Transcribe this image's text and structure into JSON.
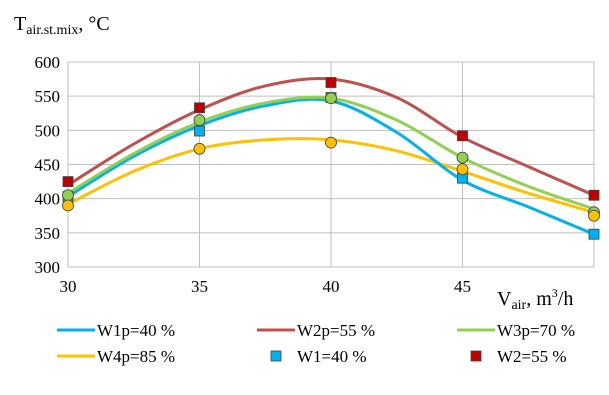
{
  "chart_data": {
    "type": "line",
    "ylabel_main": "T",
    "ylabel_sub": "air.st.mix",
    "ylabel_unit": ", °C",
    "xlabel_main": "V",
    "xlabel_sub": "air",
    "xlabel_unit": ", m",
    "xlabel_sup": "3",
    "xlabel_tail": "/h",
    "x": [
      30,
      35,
      40,
      45,
      50
    ],
    "x_tick_labels": [
      "30",
      "35",
      "40",
      "45"
    ],
    "ylim": [
      300,
      600
    ],
    "y_ticks": [
      300,
      350,
      400,
      450,
      500,
      550,
      600
    ],
    "grid": true,
    "legend_position": "bottom",
    "lines": [
      {
        "name": "W1p=40 %",
        "color": "#00b0f0",
        "points": [
          [
            30,
            403
          ],
          [
            32.5,
            462
          ],
          [
            35,
            507
          ],
          [
            37.5,
            536
          ],
          [
            40,
            543
          ],
          [
            42.5,
            497
          ],
          [
            45,
            427
          ],
          [
            47.5,
            388
          ],
          [
            50,
            348
          ]
        ]
      },
      {
        "name": "W2p=55 %",
        "color": "#c0504d",
        "points": [
          [
            30,
            420
          ],
          [
            32.5,
            480
          ],
          [
            35,
            530
          ],
          [
            37.5,
            565
          ],
          [
            40,
            575
          ],
          [
            42.5,
            548
          ],
          [
            45,
            490
          ],
          [
            47.5,
            447
          ],
          [
            50,
            405
          ]
        ]
      },
      {
        "name": "W3p=70 %",
        "color": "#92d050",
        "points": [
          [
            30,
            408
          ],
          [
            32.5,
            466
          ],
          [
            35,
            512
          ],
          [
            37.5,
            540
          ],
          [
            40,
            547
          ],
          [
            42.5,
            515
          ],
          [
            45,
            460
          ],
          [
            47.5,
            418
          ],
          [
            50,
            385
          ]
        ]
      },
      {
        "name": "W4p=85 %",
        "color": "#ffc000",
        "points": [
          [
            30,
            392
          ],
          [
            32.5,
            440
          ],
          [
            35,
            473
          ],
          [
            37.5,
            486
          ],
          [
            40,
            486
          ],
          [
            42.5,
            470
          ],
          [
            45,
            440
          ],
          [
            47.5,
            408
          ],
          [
            50,
            380
          ]
        ]
      }
    ],
    "markers": [
      {
        "name": "W1=40 %",
        "shape": "square",
        "fill": "#00b0f0",
        "x": [
          30,
          35,
          40,
          45,
          50
        ],
        "y": [
          403,
          499,
          548,
          430,
          348
        ]
      },
      {
        "name": "W2=55 %",
        "shape": "square",
        "fill": "#c00000",
        "x": [
          30,
          35,
          40,
          45,
          50
        ],
        "y": [
          425,
          533,
          570,
          492,
          405
        ]
      },
      {
        "name": "W3=70 %",
        "shape": "circle",
        "fill": "#92d050",
        "x": [
          30,
          35,
          40,
          45,
          50
        ],
        "y": [
          405,
          515,
          547,
          460,
          380
        ]
      },
      {
        "name": "W4=85 %",
        "shape": "circle",
        "fill": "#ffc000",
        "x": [
          30,
          35,
          40,
          45,
          50
        ],
        "y": [
          390,
          473,
          482,
          443,
          375
        ]
      }
    ],
    "legend": [
      {
        "label": "W1p=40 %",
        "kind": "line",
        "color": "#00b0f0"
      },
      {
        "label": "W2p=55 %",
        "kind": "line",
        "color": "#c0504d"
      },
      {
        "label": "W3p=70 %",
        "kind": "line",
        "color": "#92d050"
      },
      {
        "label": "W4p=85 %",
        "kind": "line",
        "color": "#ffc000"
      },
      {
        "label": "W1=40 %",
        "kind": "square",
        "color": "#00b0f0"
      },
      {
        "label": "W2=55 %",
        "kind": "square",
        "color": "#c00000"
      }
    ]
  }
}
